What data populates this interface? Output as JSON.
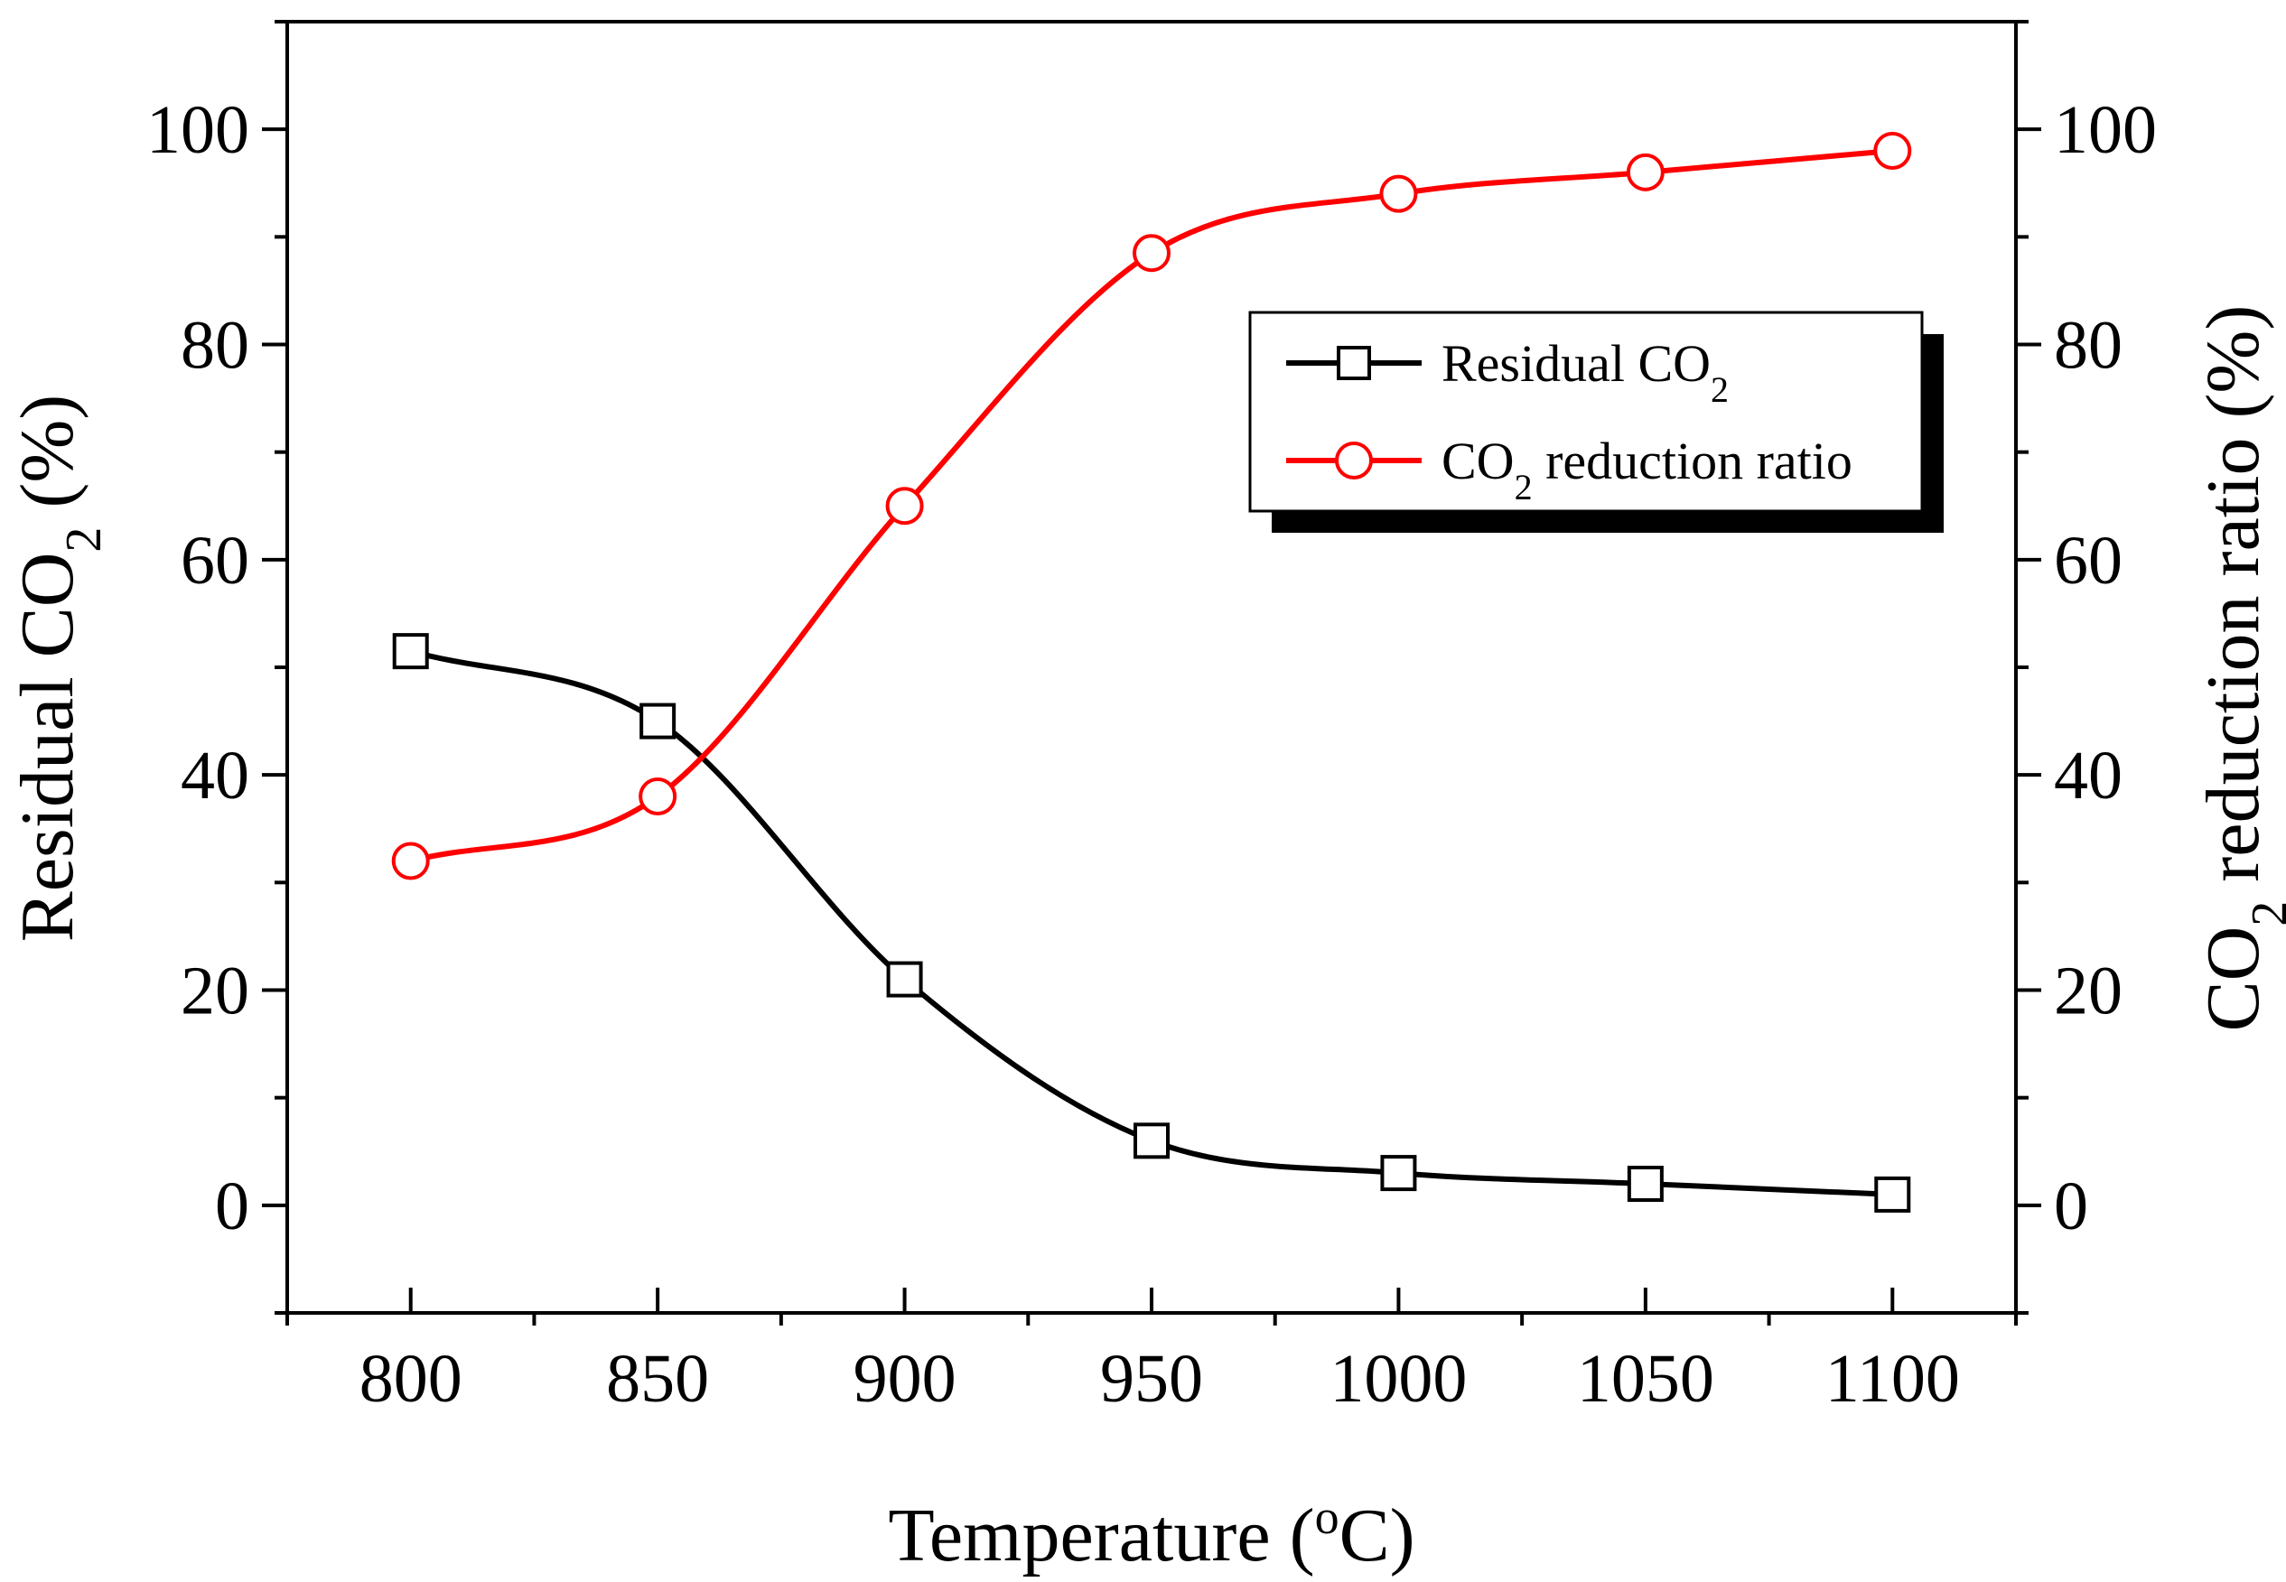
{
  "chart_data": {
    "type": "line",
    "x": [
      800,
      850,
      900,
      950,
      1000,
      1050,
      1100
    ],
    "xlabel": {
      "text": "Temperature (",
      "superscript": "o",
      "suffix": "C)"
    },
    "ylabel_left": {
      "text": "Residual CO",
      "subscript": "2",
      "suffix": " (%)"
    },
    "ylabel_right": {
      "text": "CO",
      "subscript": "2",
      "suffix": " reduction ratio (%)"
    },
    "xlim": [
      775,
      1125
    ],
    "ylim_left": [
      -10,
      110
    ],
    "ylim_right": [
      -10,
      110
    ],
    "xticks": [
      "800",
      "850",
      "900",
      "950",
      "1000",
      "1050",
      "1100"
    ],
    "yticks_left": [
      "0",
      "20",
      "40",
      "60",
      "80",
      "100"
    ],
    "yticks_right": [
      "0",
      "20",
      "40",
      "60",
      "80",
      "100"
    ],
    "series": [
      {
        "name": "Residual CO2",
        "legend": {
          "text": "Residual CO",
          "subscript": "2",
          "suffix": ""
        },
        "axis": "left",
        "marker": "square",
        "color": "#000000",
        "values": [
          51.5,
          45.0,
          21.0,
          6.0,
          3.0,
          2.0,
          1.0
        ]
      },
      {
        "name": "CO2 reduction ratio",
        "legend": {
          "text": "CO",
          "subscript": "2",
          "suffix": " reduction ratio"
        },
        "axis": "right",
        "marker": "circle",
        "color": "#ff0000",
        "values": [
          32.0,
          38.0,
          65.0,
          88.5,
          94.0,
          96.0,
          98.0
        ]
      }
    ],
    "legend_position": "upper-right",
    "grid": false
  }
}
